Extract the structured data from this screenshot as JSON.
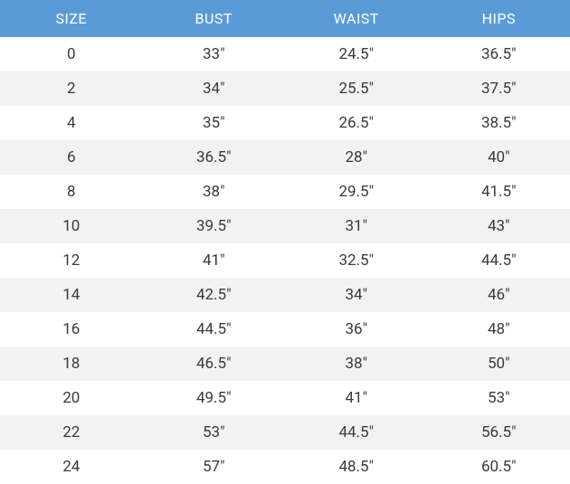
{
  "size_chart": {
    "type": "table",
    "columns": [
      "SIZE",
      "BUST",
      "WAIST",
      "HIPS"
    ],
    "rows": [
      [
        "0",
        "33\"",
        "24.5\"",
        "36.5\""
      ],
      [
        "2",
        "34\"",
        "25.5\"",
        "37.5\""
      ],
      [
        "4",
        "35\"",
        "26.5\"",
        "38.5\""
      ],
      [
        "6",
        "36.5\"",
        "28\"",
        "40\""
      ],
      [
        "8",
        "38\"",
        "29.5\"",
        "41.5\""
      ],
      [
        "10",
        "39.5\"",
        "31\"",
        "43\""
      ],
      [
        "12",
        "41\"",
        "32.5\"",
        "44.5\""
      ],
      [
        "14",
        "42.5\"",
        "34\"",
        "46\""
      ],
      [
        "16",
        "44.5\"",
        "36\"",
        "48\""
      ],
      [
        "18",
        "46.5\"",
        "38\"",
        "50\""
      ],
      [
        "20",
        "49.5\"",
        "41\"",
        "53\""
      ],
      [
        "22",
        "53\"",
        "44.5\"",
        "56.5\""
      ],
      [
        "24",
        "57\"",
        "48.5\"",
        "60.5\""
      ]
    ],
    "header_bg": "#5b9bd5",
    "header_text_color": "#ffffff",
    "row_odd_bg": "#ffffff",
    "row_even_bg": "#f2f2f2",
    "body_text_color": "#3a3a3a",
    "header_fontsize": 16,
    "body_fontsize": 17,
    "col_widths_pct": [
      25,
      25,
      25,
      25
    ]
  }
}
